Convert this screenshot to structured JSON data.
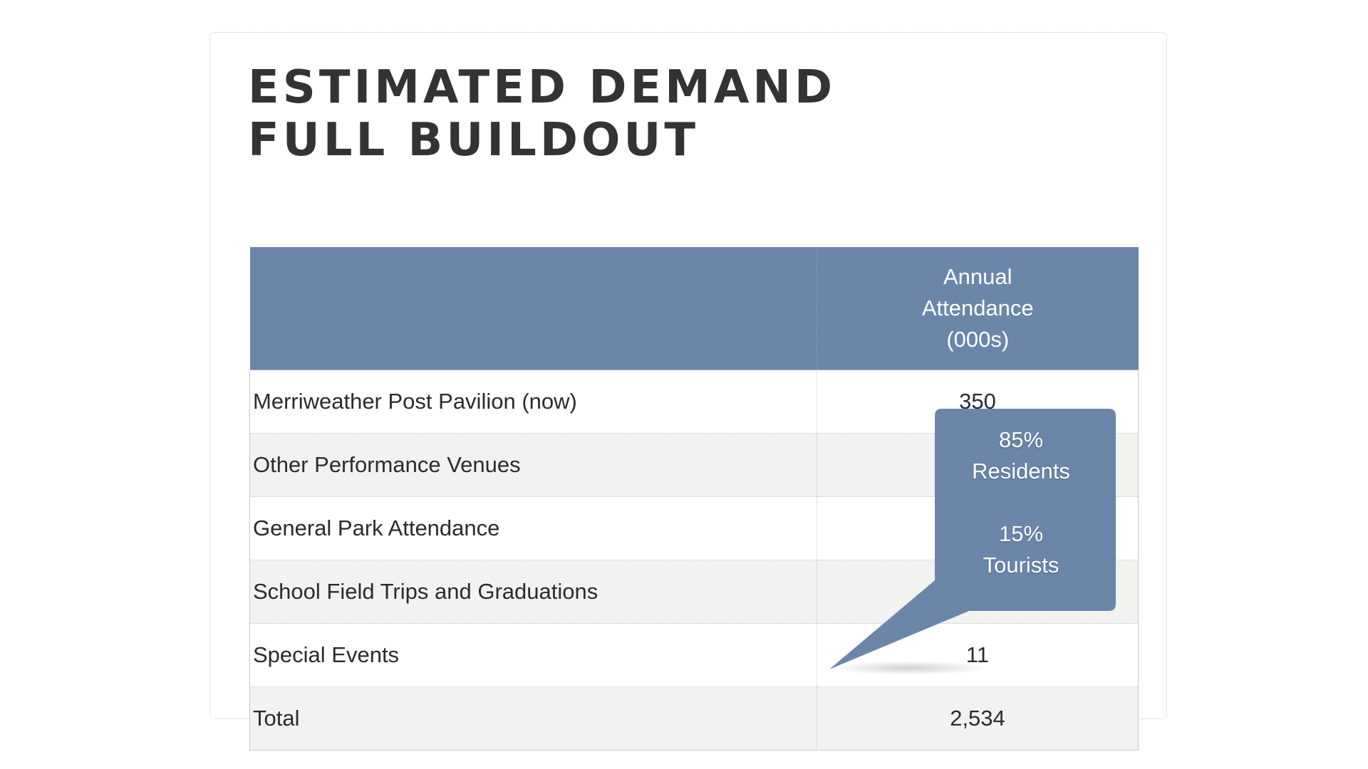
{
  "title": {
    "line1": "ESTIMATED DEMAND",
    "line2": "FULL BUILDOUT"
  },
  "table": {
    "header": {
      "col1": "",
      "col2_lines": [
        "Annual",
        "Attendance",
        "(000s)"
      ]
    },
    "rows": [
      {
        "label": "Merriweather Post Pavilion (now)",
        "value": "350"
      },
      {
        "label": "Other Performance Venues",
        "value": ""
      },
      {
        "label": "General Park Attendance",
        "value": ""
      },
      {
        "label": "School Field Trips and Graduations",
        "value": ""
      },
      {
        "label": "Special Events",
        "value": "11"
      },
      {
        "label": "Total",
        "value": "2,534"
      }
    ]
  },
  "callout": {
    "line1": "85%",
    "line2": "Residents",
    "line3": "15%",
    "line4": "Tourists"
  },
  "colors": {
    "header_fill": "#6c86aa",
    "callout_fill": "#6c86aa",
    "stripe": "#f2f2f0",
    "title": "#333333"
  }
}
